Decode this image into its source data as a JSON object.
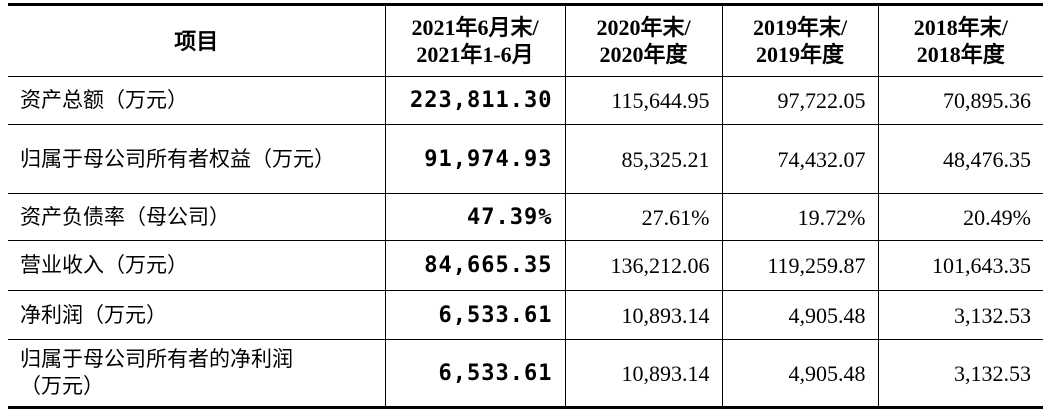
{
  "table": {
    "header": [
      [
        "项目"
      ],
      [
        "2021年6月末/",
        "2021年1-6月"
      ],
      [
        "2020年末/",
        "2020年度"
      ],
      [
        "2019年末/",
        "2019年度"
      ],
      [
        "2018年末/",
        "2018年度"
      ]
    ],
    "rows": [
      [
        "资产总额（万元）",
        "223,811.30",
        "115,644.95",
        "97,722.05",
        "70,895.36"
      ],
      [
        "归属于母公司所有者权益（万元）",
        "91,974.93",
        "85,325.21",
        "74,432.07",
        "48,476.35"
      ],
      [
        "资产负债率（母公司）",
        "47.39%",
        "27.61%",
        "19.72%",
        "20.49%"
      ],
      [
        "营业收入（万元）",
        "84,665.35",
        "136,212.06",
        "119,259.87",
        "101,643.35"
      ],
      [
        "净利润（万元）",
        "6,533.61",
        "10,893.14",
        "4,905.48",
        "3,132.53"
      ],
      [
        "归属于母公司所有者的净利润（万元）",
        "6,533.61",
        "10,893.14",
        "4,905.48",
        "3,132.53"
      ]
    ]
  }
}
